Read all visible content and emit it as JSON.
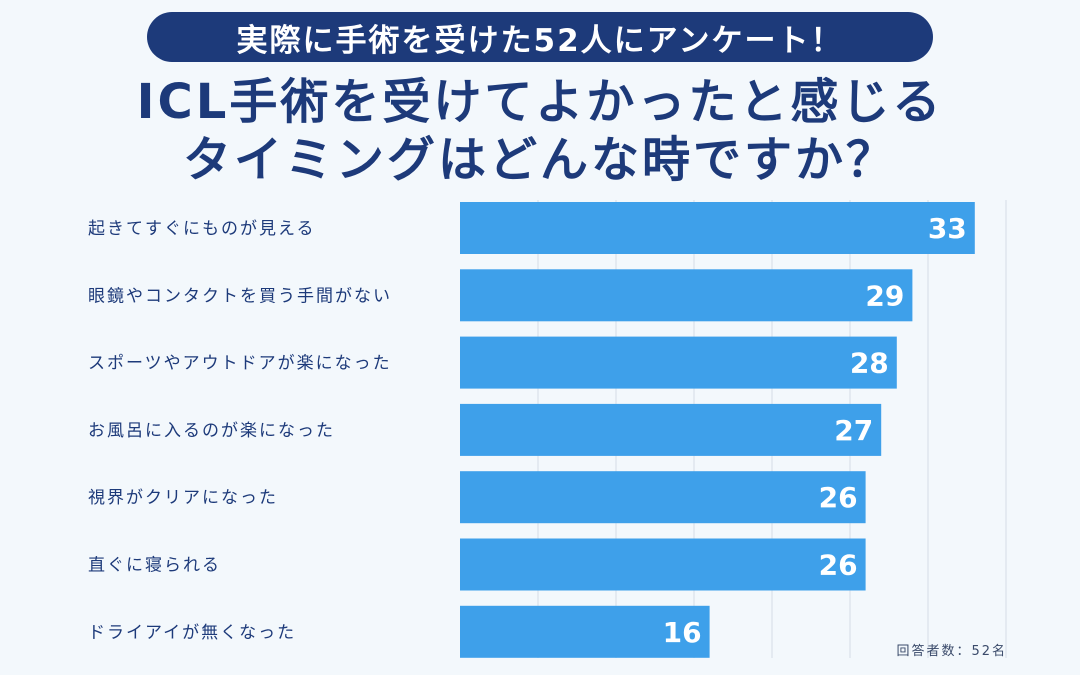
{
  "header": {
    "badge": "実際に手術を受けた52人にアンケート！",
    "title_line1": "ICL手術を受けてよかったと感じる",
    "title_line2": "タイミングはどんな時ですか？"
  },
  "note": "回答者数：52名",
  "colors": {
    "bar": "#3ea0ea",
    "title": "#1d3a7a",
    "background": "#f3f8fc"
  },
  "chart_data": {
    "type": "bar",
    "orientation": "horizontal",
    "categories": [
      "起きてすぐにものが見える",
      "眼鏡やコンタクトを買う手間がない",
      "スポーツやアウトドアが楽になった",
      "お風呂に入るのが楽になった",
      "視界がクリアになった",
      "直ぐに寝られる",
      "ドライアイが無くなった"
    ],
    "values": [
      33,
      29,
      28,
      27,
      26,
      26,
      16
    ],
    "xlim": [
      0,
      35
    ],
    "grid": true
  }
}
